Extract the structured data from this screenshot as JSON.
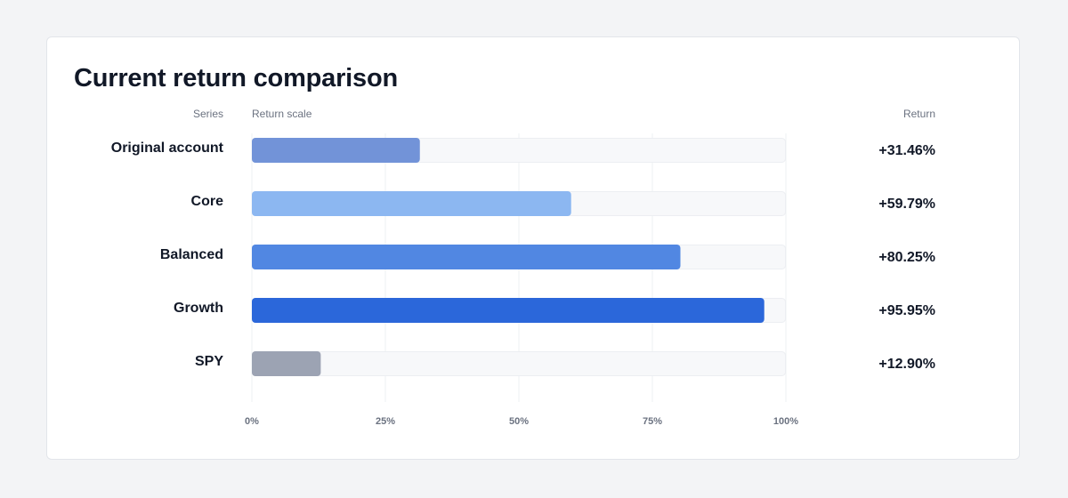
{
  "card": {
    "title": "Current return comparison",
    "headers": {
      "series": "Series",
      "scale": "Return scale",
      "return": "Return"
    }
  },
  "chart_data": {
    "type": "bar",
    "orientation": "horizontal",
    "title": "Current return comparison",
    "xlabel": "Return scale",
    "ylabel": "Series",
    "xlim": [
      0,
      100
    ],
    "grid": true,
    "legend": "none",
    "categories": [
      "Original account",
      "Core",
      "Balanced",
      "Growth",
      "SPY"
    ],
    "values": [
      31.46,
      59.79,
      80.25,
      95.95,
      12.9
    ],
    "value_labels": [
      "+31.46%",
      "+59.79%",
      "+80.25%",
      "+95.95%",
      "+12.90%"
    ],
    "colors": [
      "#7293d8",
      "#8cb7f1",
      "#5187e2",
      "#2b67da",
      "#9ca3b3"
    ],
    "ticks": [
      0,
      25,
      50,
      75,
      100
    ],
    "tick_labels": [
      "0%",
      "25%",
      "50%",
      "75%",
      "100%"
    ],
    "track_color": "#f7f8fa",
    "grid_color": "#eef0f3"
  }
}
